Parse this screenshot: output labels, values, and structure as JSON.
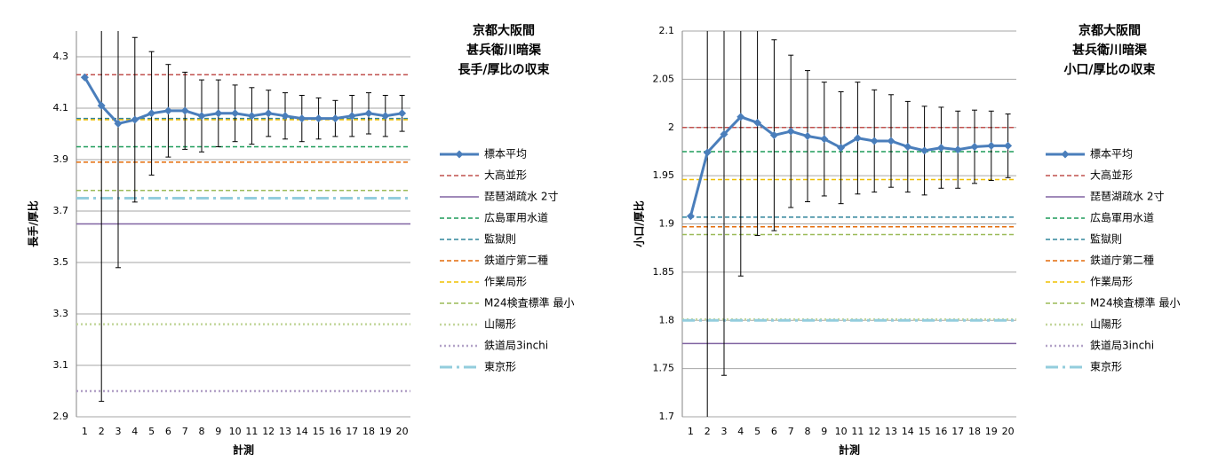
{
  "chart_data": [
    {
      "type": "line",
      "title": [
        "京都大阪間",
        "甚兵衛川暗渠",
        "長手/厚比の収束"
      ],
      "x_label": "計測",
      "y_label": "長手/厚比",
      "categories": [
        "1",
        "2",
        "3",
        "4",
        "5",
        "6",
        "7",
        "8",
        "9",
        "10",
        "11",
        "12",
        "13",
        "14",
        "15",
        "16",
        "17",
        "18",
        "19",
        "20"
      ],
      "ylim": [
        2.9,
        4.4
      ],
      "yticks": [
        2.9,
        3.1,
        3.3,
        3.5,
        3.7,
        3.9,
        4.1,
        4.3
      ],
      "grid": true,
      "series": [
        {
          "name": "標本平均",
          "color": "#4a7ebb",
          "style": "marker",
          "values": [
            4.22,
            4.11,
            4.04,
            4.055,
            4.08,
            4.09,
            4.09,
            4.07,
            4.08,
            4.08,
            4.07,
            4.08,
            4.07,
            4.06,
            4.06,
            4.06,
            4.07,
            4.08,
            4.07,
            4.08
          ],
          "errors": [
            null,
            1.15,
            0.56,
            0.32,
            0.24,
            0.18,
            0.15,
            0.14,
            0.13,
            0.11,
            0.11,
            0.09,
            0.09,
            0.09,
            0.08,
            0.07,
            0.08,
            0.08,
            0.08,
            0.07
          ]
        },
        {
          "name": "大高並形",
          "color": "#c0504d",
          "style": "dashed",
          "value": 4.23
        },
        {
          "name": "琵琶湖疏水 2寸",
          "color": "#8064a2",
          "style": "solid",
          "value": 3.65
        },
        {
          "name": "広島軍用水道",
          "color": "#1e9c5a",
          "style": "dashed",
          "value": 3.95
        },
        {
          "name": "監獄則",
          "color": "#31859c",
          "style": "dashed",
          "value": 4.06
        },
        {
          "name": "鉄道庁第二種",
          "color": "#e46c0a",
          "style": "dashed",
          "value": 3.89
        },
        {
          "name": "作業局形",
          "color": "#f0c000",
          "style": "dashed",
          "value": 4.055
        },
        {
          "name": "M24検査標準 最小",
          "color": "#9bbb59",
          "style": "dashed",
          "value": 3.78
        },
        {
          "name": "山陽形",
          "color": "#c3d69b",
          "style": "dotted",
          "value": 3.26
        },
        {
          "name": "鉄道局3inchi",
          "color": "#b3a2c7",
          "style": "dotted",
          "value": 3.0
        },
        {
          "name": "東京形",
          "color": "#93cddd",
          "style": "dashdot",
          "value": 3.75
        }
      ]
    },
    {
      "type": "line",
      "title": [
        "京都大阪間",
        "甚兵衛川暗渠",
        "小口/厚比の収束"
      ],
      "x_label": "計測",
      "y_label": "小口/厚比",
      "categories": [
        "1",
        "2",
        "3",
        "4",
        "5",
        "6",
        "7",
        "8",
        "9",
        "10",
        "11",
        "12",
        "13",
        "14",
        "15",
        "16",
        "17",
        "18",
        "19",
        "20"
      ],
      "ylim": [
        1.7,
        2.1
      ],
      "yticks": [
        1.7,
        1.75,
        1.8,
        1.85,
        1.9,
        1.95,
        2,
        2.05,
        2.1
      ],
      "grid": true,
      "series": [
        {
          "name": "標本平均",
          "color": "#4a7ebb",
          "style": "marker",
          "values": [
            1.908,
            1.974,
            1.993,
            2.011,
            2.005,
            1.992,
            1.996,
            1.991,
            1.988,
            1.979,
            1.989,
            1.986,
            1.986,
            1.98,
            1.976,
            1.979,
            1.977,
            1.98,
            1.981,
            1.981
          ],
          "errors": [
            null,
            0.3,
            0.25,
            0.165,
            0.117,
            0.099,
            0.079,
            0.068,
            0.059,
            0.058,
            0.058,
            0.053,
            0.048,
            0.047,
            0.046,
            0.042,
            0.04,
            0.038,
            0.036,
            0.033
          ]
        },
        {
          "name": "大高並形",
          "color": "#c0504d",
          "style": "dashed",
          "value": 2.0
        },
        {
          "name": "琵琶湖疏水 2寸",
          "color": "#8064a2",
          "style": "solid",
          "value": 1.776
        },
        {
          "name": "広島軍用水道",
          "color": "#1e9c5a",
          "style": "dashed",
          "value": 1.975
        },
        {
          "name": "監獄則",
          "color": "#31859c",
          "style": "dashed",
          "value": 1.907
        },
        {
          "name": "鉄道庁第二種",
          "color": "#e46c0a",
          "style": "dashed",
          "value": 1.897
        },
        {
          "name": "作業局形",
          "color": "#f0c000",
          "style": "dashed",
          "value": 1.946
        },
        {
          "name": "M24検査標準 最小",
          "color": "#9bbb59",
          "style": "dashed",
          "value": 1.889
        },
        {
          "name": "山陽形",
          "color": "#c3d69b",
          "style": "dotted",
          "value": 1.801
        },
        {
          "name": "鉄道局3inchi",
          "color": "#b3a2c7",
          "style": "dotted",
          "value": null
        },
        {
          "name": "東京形",
          "color": "#93cddd",
          "style": "dashdot",
          "value": 1.8
        }
      ]
    }
  ]
}
